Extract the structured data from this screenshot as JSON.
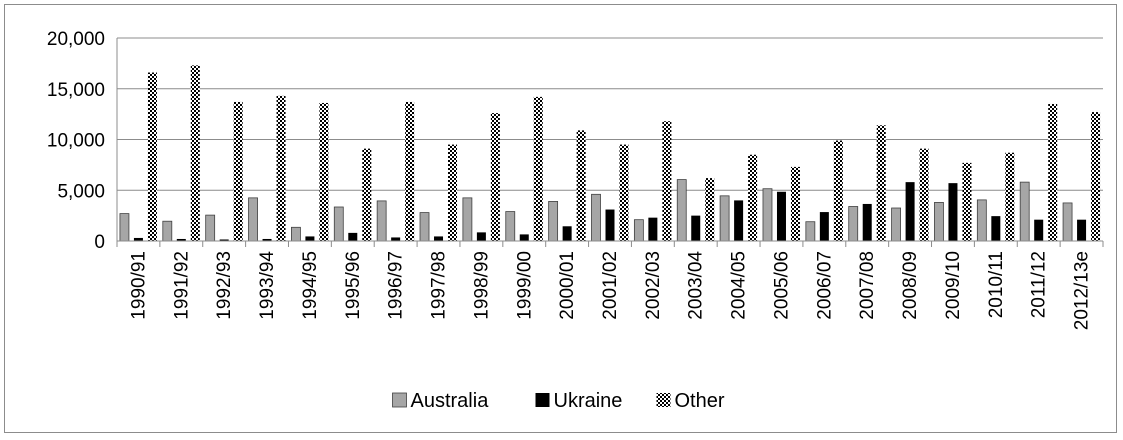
{
  "chart_data": {
    "type": "bar",
    "categories": [
      "1990/91",
      "1991/92",
      "1992/93",
      "1993/94",
      "1994/95",
      "1995/96",
      "1996/97",
      "1997/98",
      "1998/99",
      "1999/00",
      "2000/01",
      "2001/02",
      "2002/03",
      "2003/04",
      "2004/05",
      "2005/06",
      "2006/07",
      "2007/08",
      "2008/09",
      "2009/10",
      "2010/11",
      "2011/12",
      "2012/13e"
    ],
    "series": [
      {
        "name": "Australia",
        "color": "#a6a6a6",
        "pattern": "solid-gray",
        "values": [
          2700,
          1950,
          2550,
          4250,
          1350,
          3350,
          3950,
          2800,
          4250,
          2900,
          3900,
          4600,
          2100,
          6050,
          4450,
          5150,
          1900,
          3400,
          3250,
          3800,
          4050,
          5800,
          3750
        ]
      },
      {
        "name": "Ukraine",
        "color": "#000000",
        "pattern": "solid-black",
        "values": [
          300,
          200,
          150,
          200,
          450,
          800,
          350,
          450,
          850,
          650,
          1450,
          3100,
          2300,
          2500,
          4000,
          4850,
          2850,
          3650,
          5800,
          5700,
          2450,
          2100,
          2100
        ]
      },
      {
        "name": "Other",
        "color": "#000000",
        "pattern": "dotted-outline",
        "values": [
          16600,
          17300,
          13700,
          14300,
          13600,
          9100,
          13700,
          9500,
          12600,
          14200,
          10900,
          9500,
          11800,
          6200,
          8500,
          7300,
          9900,
          11400,
          9100,
          7700,
          8700,
          13500,
          12700
        ]
      }
    ],
    "ylim": [
      0,
      20000
    ],
    "yticks": [
      "0",
      "5,000",
      "10,000",
      "15,000",
      "20,000"
    ],
    "ytick_values": [
      0,
      5000,
      10000,
      15000,
      20000
    ],
    "grid": true,
    "legend": "bottom",
    "title": "",
    "xlabel": "",
    "ylabel": ""
  }
}
